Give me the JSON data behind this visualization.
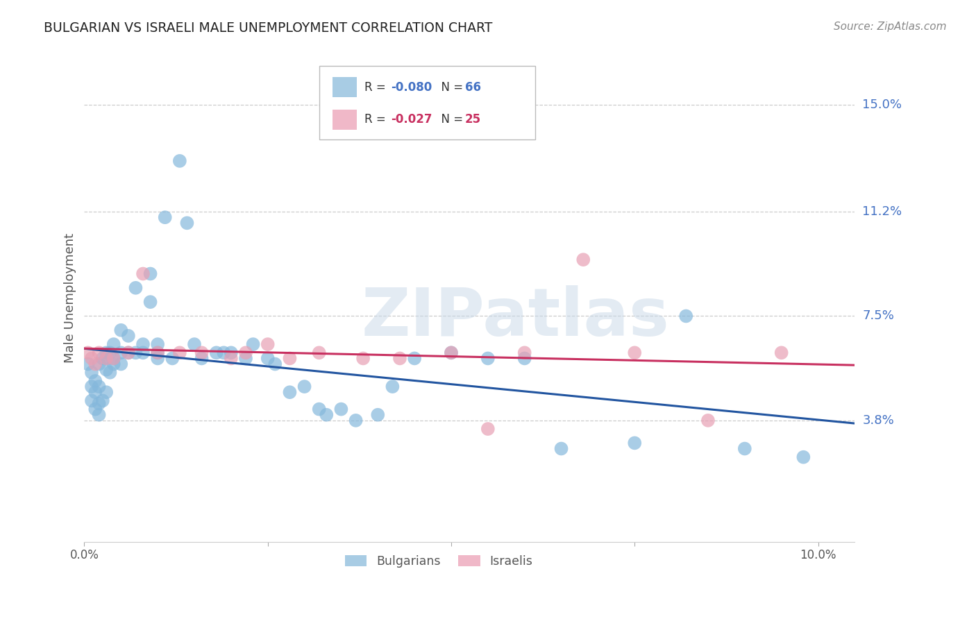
{
  "title": "BULGARIAN VS ISRAELI MALE UNEMPLOYMENT CORRELATION CHART",
  "source": "Source: ZipAtlas.com",
  "ylabel": "Male Unemployment",
  "xlim": [
    0.0,
    0.105
  ],
  "ylim": [
    -0.005,
    0.168
  ],
  "yticks": [
    0.038,
    0.075,
    0.112,
    0.15
  ],
  "ytick_labels": [
    "3.8%",
    "7.5%",
    "11.2%",
    "15.0%"
  ],
  "watermark": "ZIPatlas",
  "bg_color": "#ffffff",
  "grid_color": "#cccccc",
  "bulgarians_color": "#85b8dc",
  "israelis_color": "#e8a0b4",
  "legend_box_color_bulgarian": "#a8cce4",
  "legend_box_color_israeli": "#f0b8c8",
  "title_color": "#222222",
  "axis_label_color": "#555555",
  "ytick_color": "#4472c4",
  "source_color": "#888888",
  "line_blue_color": "#2255a0",
  "line_pink_color": "#c83060",
  "bg_R_label": "R = ",
  "bg_R_val": "-0.080",
  "bg_N_label": "N = ",
  "bg_N_val": "66",
  "il_R_label": "R = ",
  "il_R_val": "-0.027",
  "il_N_label": "N = ",
  "il_N_val": "25",
  "bg_x": [
    0.0005,
    0.001,
    0.001,
    0.001,
    0.0015,
    0.0015,
    0.0015,
    0.002,
    0.002,
    0.002,
    0.002,
    0.0025,
    0.0025,
    0.003,
    0.003,
    0.003,
    0.003,
    0.0035,
    0.0035,
    0.004,
    0.004,
    0.004,
    0.005,
    0.005,
    0.005,
    0.006,
    0.006,
    0.007,
    0.007,
    0.008,
    0.008,
    0.009,
    0.009,
    0.01,
    0.01,
    0.01,
    0.011,
    0.012,
    0.013,
    0.014,
    0.015,
    0.016,
    0.018,
    0.019,
    0.02,
    0.022,
    0.023,
    0.025,
    0.026,
    0.028,
    0.03,
    0.032,
    0.033,
    0.035,
    0.037,
    0.04,
    0.042,
    0.045,
    0.05,
    0.055,
    0.06,
    0.065,
    0.075,
    0.082,
    0.09,
    0.098
  ],
  "bg_y": [
    0.058,
    0.055,
    0.05,
    0.045,
    0.048,
    0.052,
    0.042,
    0.04,
    0.044,
    0.058,
    0.05,
    0.06,
    0.045,
    0.062,
    0.056,
    0.048,
    0.06,
    0.055,
    0.062,
    0.058,
    0.06,
    0.065,
    0.062,
    0.058,
    0.07,
    0.062,
    0.068,
    0.062,
    0.085,
    0.062,
    0.065,
    0.08,
    0.09,
    0.06,
    0.062,
    0.065,
    0.11,
    0.06,
    0.13,
    0.108,
    0.065,
    0.06,
    0.062,
    0.062,
    0.062,
    0.06,
    0.065,
    0.06,
    0.058,
    0.048,
    0.05,
    0.042,
    0.04,
    0.042,
    0.038,
    0.04,
    0.05,
    0.06,
    0.062,
    0.06,
    0.06,
    0.028,
    0.03,
    0.075,
    0.028,
    0.025
  ],
  "il_x": [
    0.0005,
    0.001,
    0.0015,
    0.002,
    0.003,
    0.004,
    0.006,
    0.008,
    0.01,
    0.013,
    0.016,
    0.02,
    0.022,
    0.025,
    0.028,
    0.032,
    0.038,
    0.043,
    0.05,
    0.055,
    0.06,
    0.068,
    0.075,
    0.085,
    0.095
  ],
  "il_y": [
    0.062,
    0.06,
    0.058,
    0.062,
    0.06,
    0.06,
    0.062,
    0.09,
    0.062,
    0.062,
    0.062,
    0.06,
    0.062,
    0.065,
    0.06,
    0.062,
    0.06,
    0.06,
    0.062,
    0.035,
    0.062,
    0.095,
    0.062,
    0.038,
    0.062
  ]
}
